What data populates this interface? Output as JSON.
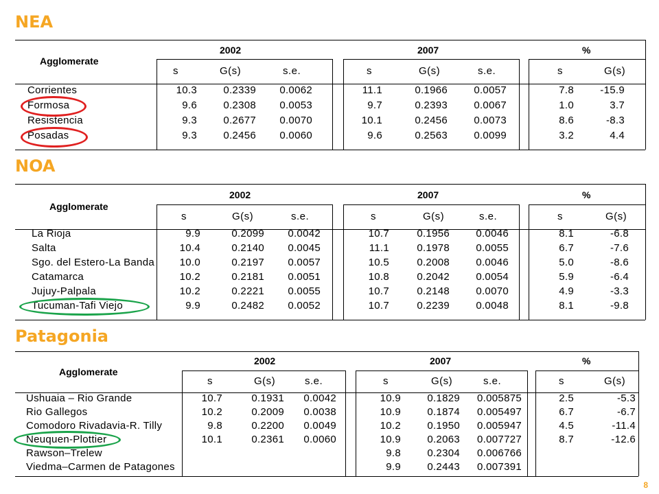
{
  "regions": [
    {
      "title": "NEA",
      "agglomerate_label": "Agglomerate",
      "years": [
        "2002",
        "2007",
        "%"
      ],
      "subheaders": {
        "y2002": [
          "s",
          "G(s)",
          "s.e."
        ],
        "y2007": [
          "s",
          "G(s)",
          "s.e."
        ],
        "pct": [
          "s",
          "G(s)"
        ]
      },
      "rows": [
        {
          "name": "Corrientes",
          "v": [
            "10.3",
            "0.2339",
            "0.0062",
            "11.1",
            "0.1966",
            "0.0057",
            "7.8",
            "-15.9"
          ]
        },
        {
          "name": "Formosa",
          "v": [
            "9.6",
            "0.2308",
            "0.0053",
            "9.7",
            "0.2393",
            "0.0067",
            "1.0",
            "3.7"
          ]
        },
        {
          "name": "Resistencia",
          "v": [
            "9.3",
            "0.2677",
            "0.0070",
            "10.1",
            "0.2456",
            "0.0073",
            "8.6",
            "-8.3"
          ]
        },
        {
          "name": "Posadas",
          "v": [
            "9.3",
            "0.2456",
            "0.0060",
            "9.6",
            "0.2563",
            "0.0099",
            "3.2",
            "4.4"
          ]
        }
      ]
    },
    {
      "title": "NOA",
      "agglomerate_label": "Agglomerate",
      "years": [
        "2002",
        "2007",
        "%"
      ],
      "subheaders": {
        "y2002": [
          "s",
          "G(s)",
          "s.e."
        ],
        "y2007": [
          "s",
          "G(s)",
          "s.e."
        ],
        "pct": [
          "s",
          "G(s)"
        ]
      },
      "rows": [
        {
          "name": "La Rioja",
          "v": [
            "9.9",
            "0.2099",
            "0.0042",
            "10.7",
            "0.1956",
            "0.0046",
            "8.1",
            "-6.8"
          ]
        },
        {
          "name": "Salta",
          "v": [
            "10.4",
            "0.2140",
            "0.0045",
            "11.1",
            "0.1978",
            "0.0055",
            "6.7",
            "-7.6"
          ]
        },
        {
          "name": "Sgo. del Estero-La Banda",
          "v": [
            "10.0",
            "0.2197",
            "0.0057",
            "10.5",
            "0.2008",
            "0.0046",
            "5.0",
            "-8.6"
          ]
        },
        {
          "name": "Catamarca",
          "v": [
            "10.2",
            "0.2181",
            "0.0051",
            "10.8",
            "0.2042",
            "0.0054",
            "5.9",
            "-6.4"
          ]
        },
        {
          "name": "Jujuy-Palpala",
          "v": [
            "10.2",
            "0.2221",
            "0.0055",
            "10.7",
            "0.2148",
            "0.0070",
            "4.9",
            "-3.3"
          ]
        },
        {
          "name": "Tucuman-Tafi Viejo",
          "v": [
            "9.9",
            "0.2482",
            "0.0052",
            "10.7",
            "0.2239",
            "0.0048",
            "8.1",
            "-9.8"
          ]
        }
      ]
    },
    {
      "title": "Patagonia",
      "agglomerate_label": "Agglomerate",
      "years": [
        "2002",
        "2007",
        "%"
      ],
      "subheaders": {
        "y2002": [
          "s",
          "G(s)",
          "s.e."
        ],
        "y2007": [
          "s",
          "G(s)",
          "s.e."
        ],
        "pct": [
          "s",
          "G(s)"
        ]
      },
      "rows": [
        {
          "name": "Ushuaia – Rio Grande",
          "v": [
            "10.7",
            "0.1931",
            "0.0042",
            "10.9",
            "0.1829",
            "0.005875",
            "2.5",
            "-5.3"
          ]
        },
        {
          "name": "Rio Gallegos",
          "v": [
            "10.2",
            "0.2009",
            "0.0038",
            "10.9",
            "0.1874",
            "0.005497",
            "6.7",
            "-6.7"
          ]
        },
        {
          "name": "Comodoro Rivadavia-R. Tilly",
          "v": [
            "9.8",
            "0.2200",
            "0.0049",
            "10.2",
            "0.1950",
            "0.005947",
            "4.5",
            "-11.4"
          ]
        },
        {
          "name": "Neuquen-Plottier",
          "v": [
            "10.1",
            "0.2361",
            "0.0060",
            "10.9",
            "0.2063",
            "0.007727",
            "8.7",
            "-12.6"
          ]
        },
        {
          "name": "Rawson–Trelew",
          "v": [
            "",
            "",
            "",
            "9.8",
            "0.2304",
            "0.006766",
            "",
            ""
          ]
        },
        {
          "name": "Viedma–Carmen de Patagones",
          "v": [
            "",
            "",
            "",
            "9.9",
            "0.2443",
            "0.007391",
            "",
            ""
          ]
        }
      ]
    }
  ],
  "annotations": {
    "circle_red": "#e02020",
    "circle_green": "#1aa34a",
    "title_color": "#f5a623"
  },
  "page_number": "8"
}
